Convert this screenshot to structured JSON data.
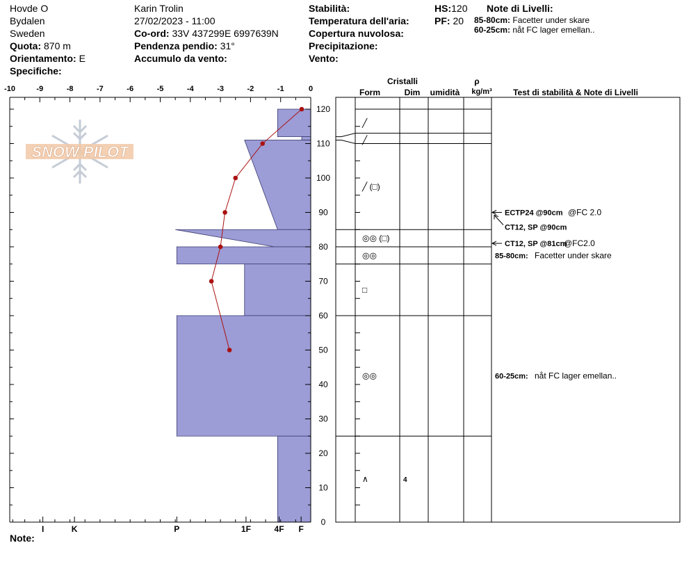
{
  "header": {
    "site": "Hovde O",
    "region": "Bydalen",
    "country": "Sweden",
    "quota_label": "Quota:",
    "quota_value": "870 m",
    "orientation_label": "Orientamento:",
    "orientation_value": "E",
    "specifics_label": "Specifiche:",
    "observer": "Karin  Trolin",
    "datetime": "27/02/2023 - 11:00",
    "coord_label": "Co-ord:",
    "coord_value": "33V 437299E 6997639N",
    "slope_label": "Pendenza pendio:",
    "slope_value": "31°",
    "wind_loading_label": "Accumulo da vento:",
    "stability_label": "Stabilità:",
    "air_temp_label": "Temperatura dell'aria:",
    "cloud_cover_label": "Copertura nuvolosa:",
    "precip_label": "Precipitazione:",
    "wind_label": "Vento:",
    "hs_label": "HS:",
    "hs_value": "120",
    "pf_label": "PF:",
    "pf_value": "20",
    "layer_notes_label": "Note di Livelli:",
    "layer_notes": [
      {
        "range": "85-80cm:",
        "text": "Facetter under skare"
      },
      {
        "range": "60-25cm:",
        "text": "nåt FC lager emellan.."
      }
    ]
  },
  "footer": {
    "note_label": "Note:"
  },
  "logo_text": "SNOW PILOT",
  "colors": {
    "hardness_fill": "#9c9cd6",
    "temperature": "#aa1111"
  },
  "chart_data": {
    "type": "snow_profile",
    "temp_axis": {
      "min": -10,
      "max": 0,
      "ticks": [
        "-10",
        "-9",
        "-8",
        "-7",
        "-6",
        "-5",
        "-4",
        "-3",
        "-2",
        "-1",
        "0"
      ]
    },
    "depth_axis": {
      "min": 0,
      "max": 125,
      "ticks": [
        0,
        10,
        20,
        30,
        40,
        50,
        60,
        70,
        80,
        90,
        100,
        110,
        120
      ]
    },
    "hardness_labels": [
      {
        "label": "I",
        "temp": -8.9
      },
      {
        "label": "K",
        "temp": -7.85
      },
      {
        "label": "P",
        "temp": -4.45
      },
      {
        "label": "1F",
        "temp": -2.15
      },
      {
        "label": "4F",
        "temp": -1.05
      },
      {
        "label": "F",
        "temp": -0.32
      }
    ],
    "hardness_layers": [
      {
        "top": 120,
        "bottom": 112,
        "hardness_temp": -1.1
      },
      {
        "top": 112,
        "bottom": 111,
        "hardness_temp": -0.3
      },
      {
        "top": 111,
        "bottom": 85,
        "hardness_temp_top": -2.2,
        "hardness_temp_bottom": -1.1
      },
      {
        "top": 85,
        "bottom": 80,
        "hardness_temp_top": -4.5,
        "hardness_temp_bottom": -1.2
      },
      {
        "top": 80,
        "bottom": 75,
        "hardness_temp": -4.45
      },
      {
        "top": 75,
        "bottom": 60,
        "hardness_temp": -2.2
      },
      {
        "top": 60,
        "bottom": 25,
        "hardness_temp": -4.45
      },
      {
        "top": 25,
        "bottom": 0,
        "hardness_temp": -1.1
      }
    ],
    "temperature_profile": [
      {
        "depth": 120,
        "temp": -0.3
      },
      {
        "depth": 110,
        "temp": -1.6
      },
      {
        "depth": 100,
        "temp": -2.5
      },
      {
        "depth": 90,
        "temp": -2.85
      },
      {
        "depth": 80,
        "temp": -3.0
      },
      {
        "depth": 70,
        "temp": -3.3
      },
      {
        "depth": 50,
        "temp": -2.7
      }
    ],
    "column_headers": {
      "crystals": "Cristalli",
      "form": "Form",
      "size": "Dim",
      "moisture": "umidità",
      "density_symbol": "ρ",
      "density_unit": "kg/m³",
      "tests": "Test di stabilità & Note di Livelli"
    },
    "layer_boundaries": [
      120,
      113,
      110,
      85,
      80,
      75,
      60,
      25,
      0
    ],
    "crystal_rows": [
      {
        "depth": 116,
        "form": "╱",
        "size": ""
      },
      {
        "depth": 111,
        "form": "╱",
        "size": ""
      },
      {
        "depth": 97.5,
        "form": "╱ (□)",
        "size": ""
      },
      {
        "depth": 82.5,
        "form": "◎◎ (□)",
        "size": ""
      },
      {
        "depth": 77.5,
        "form": "◎◎",
        "size": ""
      },
      {
        "depth": 67.5,
        "form": "□",
        "size": ""
      },
      {
        "depth": 42.5,
        "form": "◎◎",
        "size": ""
      },
      {
        "depth": 12.5,
        "form": "∧",
        "size": "4"
      }
    ],
    "stability_tests": [
      {
        "depth": 90,
        "code": "ECTP24 @90cm",
        "detail": "@FC 2.0",
        "dy": 0
      },
      {
        "depth": 90,
        "code": "CT12, SP @90cm",
        "detail": "",
        "dy": 21
      },
      {
        "depth": 81,
        "code": "CT12, SP @81cm",
        "detail": "@FC2.0",
        "dy": 0
      }
    ],
    "test_layer_notes": [
      {
        "depth": 77.5,
        "range": "85-80cm:",
        "text": "Facetter under skare"
      },
      {
        "depth": 42.5,
        "range": "60-25cm:",
        "text": "nåt FC lager emellan.."
      }
    ]
  }
}
